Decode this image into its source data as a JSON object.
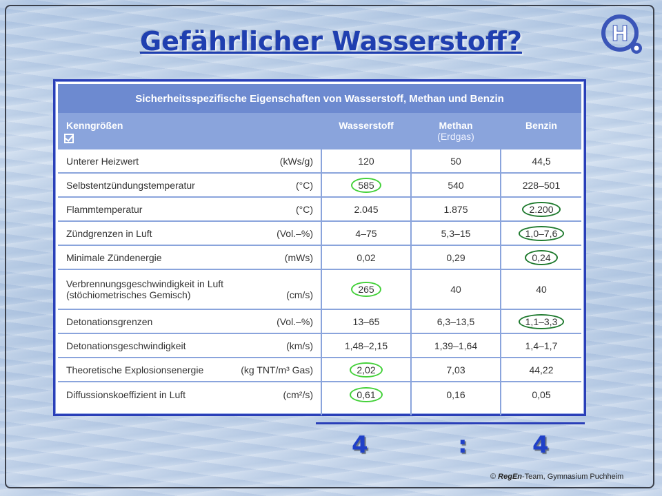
{
  "title": "Gefährlicher Wasserstoff? ",
  "logo_letter": "H",
  "table": {
    "heading": "Sicherheitsspezifische Eigenschaften von Wasserstoff, Methan und Benzin",
    "columns": {
      "param": "Kenngrößen",
      "hydrogen": "Wasserstoff",
      "methane": "Methan",
      "methane_sub": "(Erdgas)",
      "petrol": "Benzin"
    },
    "rows": [
      {
        "name": "Unterer Heizwert",
        "unit": "(kWs/g)",
        "h": "120",
        "m": "50",
        "b": "44,5",
        "h_mark": "",
        "b_mark": ""
      },
      {
        "name": "Selbstentzündungstemperatur",
        "unit": "(°C)",
        "h": "585",
        "m": "540",
        "b": "228–501",
        "h_mark": "light",
        "b_mark": ""
      },
      {
        "name": "Flammtemperatur",
        "unit": "(°C)",
        "h": "2.045",
        "m": "1.875",
        "b": "2.200",
        "h_mark": "",
        "b_mark": "dark"
      },
      {
        "name": "Zündgrenzen in Luft",
        "unit": "(Vol.–%)",
        "h": "4–75",
        "m": "5,3–15",
        "b": "1,0–7,6",
        "h_mark": "",
        "b_mark": "dark"
      },
      {
        "name": "Minimale Zündenergie",
        "unit": "(mWs)",
        "h": "0,02",
        "m": "0,29",
        "b": "0,24",
        "h_mark": "",
        "b_mark": "dark"
      },
      {
        "name": "Verbrennungsgeschwindigkeit in Luft",
        "name2": "(stöchiometrisches Gemisch)",
        "unit": "(cm/s)",
        "h": "265",
        "m": "40",
        "b": "40",
        "h_mark": "light",
        "b_mark": ""
      },
      {
        "name": "Detonationsgrenzen",
        "unit": "(Vol.–%)",
        "h": "13–65",
        "m": "6,3–13,5",
        "b": "1,1–3,3",
        "h_mark": "",
        "b_mark": "dark"
      },
      {
        "name": "Detonationsgeschwindigkeit",
        "unit": "(km/s)",
        "h": "1,48–2,15",
        "m": "1,39–1,64",
        "b": "1,4–1,7",
        "h_mark": "",
        "b_mark": ""
      },
      {
        "name": "Theoretische Explosionsenergie",
        "unit": "(kg TNT/m³ Gas)",
        "h": "2,02",
        "m": "7,03",
        "b": "44,22",
        "h_mark": "light",
        "b_mark": ""
      },
      {
        "name": "Diffussionskoeffizient in Luft",
        "unit": "(cm²/s)",
        "h": "0,61",
        "m": "0,16",
        "b": "0,05",
        "h_mark": "light",
        "b_mark": ""
      }
    ]
  },
  "score": {
    "left": "4",
    "sep": ":",
    "right": "4"
  },
  "copyright": {
    "symbol": "©",
    "brand": "RegEn",
    "rest": "-Team, Gymnasium Puchheim"
  },
  "colors": {
    "title": "#1f3fb0",
    "header": "#6d8ad0",
    "subheader": "#8aa4dc",
    "mark_light": "#44d13a",
    "mark_dark": "#1f7a2e"
  }
}
